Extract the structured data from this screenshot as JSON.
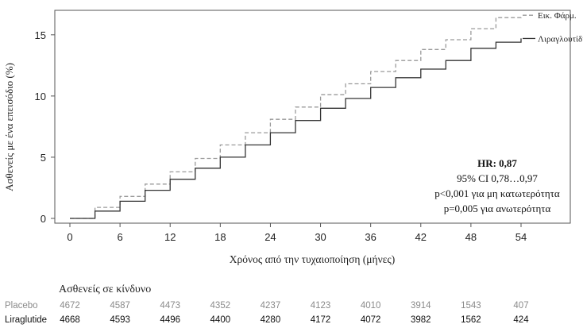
{
  "chart_data": {
    "type": "line",
    "ylabel": "Ασθενείς με ένα επεισόδιο (%)",
    "xlabel": "Χρόνος από την τυχαιοποίηση (μήνες)",
    "xlim": [
      0,
      54
    ],
    "ylim": [
      0,
      17
    ],
    "x_ticks": [
      0,
      6,
      12,
      18,
      24,
      30,
      36,
      42,
      48,
      54
    ],
    "y_ticks": [
      0,
      5,
      10,
      15
    ],
    "grid": false,
    "series": [
      {
        "name": "Εικ. Φάρμ.",
        "color": "#9a9a9a",
        "style": "dashed",
        "x": [
          0,
          3,
          6,
          9,
          12,
          15,
          18,
          21,
          24,
          27,
          30,
          33,
          36,
          39,
          42,
          45,
          48,
          51,
          54
        ],
        "y": [
          0,
          0.9,
          1.8,
          2.8,
          3.8,
          4.9,
          6.0,
          7.0,
          8.1,
          9.1,
          10.1,
          11.0,
          12.0,
          12.9,
          13.8,
          14.6,
          15.5,
          16.4,
          16.6
        ]
      },
      {
        "name": "Λιραγλουτίδη",
        "color": "#333333",
        "style": "solid",
        "x": [
          0,
          3,
          6,
          9,
          12,
          15,
          18,
          21,
          24,
          27,
          30,
          33,
          36,
          39,
          42,
          45,
          48,
          51,
          54
        ],
        "y": [
          0,
          0.6,
          1.4,
          2.3,
          3.2,
          4.1,
          5.0,
          6.0,
          7.0,
          8.0,
          9.0,
          9.8,
          10.7,
          11.5,
          12.2,
          12.9,
          13.9,
          14.4,
          14.7
        ]
      }
    ],
    "annotation": {
      "hr": "HR: 0,87",
      "ci": "95% CI 0,78…0,97",
      "p_noninf": "p<0,001 για μη κατωτερότητα",
      "p_sup": "p=0,005 για ανωτερότητα"
    },
    "risk_table": {
      "title": "Ασθενείς σε κίνδυνο",
      "rows": [
        {
          "label": "Placebo",
          "values": [
            "4672",
            "4587",
            "4473",
            "4352",
            "4237",
            "4123",
            "4010",
            "3914",
            "1543",
            "407"
          ]
        },
        {
          "label": "Liraglutide",
          "values": [
            "4668",
            "4593",
            "4496",
            "4400",
            "4280",
            "4172",
            "4072",
            "3982",
            "1562",
            "424"
          ]
        }
      ]
    }
  }
}
